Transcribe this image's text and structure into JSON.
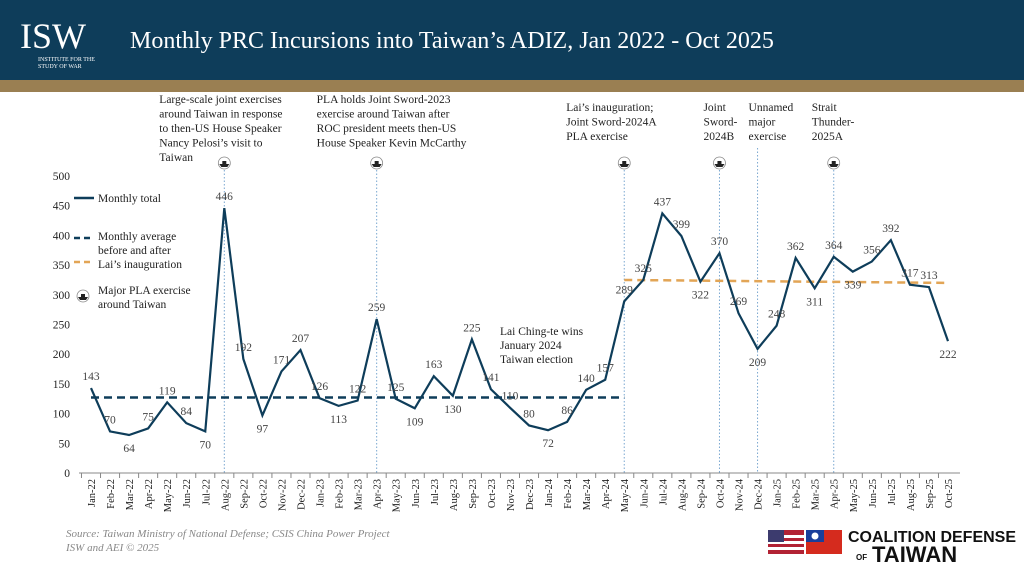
{
  "header": {
    "logo": "ISW",
    "logo_sub": [
      "INSTITUTE FOR THE",
      "STUDY OF WAR"
    ]
  },
  "chart_data": {
    "type": "line",
    "title": "Monthly PRC Incursions into Taiwan’s ADIZ, Jan 2022 - Oct 2025",
    "categories": [
      "Jan-22",
      "Feb-22",
      "Mar-22",
      "Apr-22",
      "May-22",
      "Jun-22",
      "Jul-22",
      "Aug-22",
      "Sep-22",
      "Oct-22",
      "Nov-22",
      "Dec-22",
      "Jan-23",
      "Feb-23",
      "Mar-23",
      "Apr-23",
      "May-23",
      "Jun-23",
      "Jul-23",
      "Aug-23",
      "Sep-23",
      "Oct-23",
      "Nov-23",
      "Dec-23",
      "Jan-24",
      "Feb-24",
      "Mar-24",
      "Apr-24",
      "May-24",
      "Jun-24",
      "Jul-24",
      "Aug-24",
      "Sep-24",
      "Oct-24",
      "Nov-24",
      "Dec-24",
      "Jan-25",
      "Feb-25",
      "Mar-25",
      "Apr-25",
      "May-25",
      "Jun-25",
      "Jul-25",
      "Aug-25",
      "Sep-25",
      "Oct-25"
    ],
    "series": [
      {
        "name": "Monthly total",
        "color": "#0e3d5a",
        "values": [
          143,
          70,
          64,
          75,
          119,
          84,
          70,
          446,
          192,
          97,
          171,
          207,
          126,
          113,
          122,
          259,
          125,
          109,
          163,
          130,
          225,
          141,
          110,
          80,
          72,
          86,
          140,
          157,
          289,
          325,
          437,
          399,
          322,
          370,
          269,
          209,
          248,
          362,
          311,
          364,
          339,
          356,
          392,
          317,
          313,
          222
        ]
      }
    ],
    "averages": {
      "name": [
        "Monthly average",
        "before and after",
        "Lai’s inauguration"
      ],
      "lines": [
        {
          "color": "#0e3d5a",
          "values": [
            127,
            127,
            127,
            127,
            127,
            127,
            127,
            127,
            127,
            127,
            127,
            127,
            127,
            127,
            127,
            127,
            127,
            127,
            127,
            127,
            127,
            127,
            127,
            127,
            127,
            127,
            127,
            127,
            127,
            null,
            null,
            null,
            null,
            null,
            null,
            null,
            null,
            null,
            null,
            null,
            null,
            null,
            null,
            null,
            null,
            null
          ]
        },
        {
          "color": "#e2a556",
          "values": [
            null,
            null,
            null,
            null,
            null,
            null,
            null,
            null,
            null,
            null,
            null,
            null,
            null,
            null,
            null,
            null,
            null,
            null,
            null,
            null,
            null,
            null,
            null,
            null,
            null,
            null,
            null,
            null,
            325,
            null,
            null,
            null,
            null,
            null,
            null,
            null,
            null,
            null,
            null,
            null,
            null,
            null,
            null,
            null,
            null,
            320
          ]
        }
      ]
    },
    "exercise_legend": [
      "Major PLA exercise",
      "around Taiwan"
    ],
    "annotations": [
      {
        "x": "Aug-22",
        "icon": true,
        "text": [
          "Large-scale joint exercises",
          "around Taiwan in response",
          "to then-US House Speaker",
          "Nancy Pelosi’s  visit to",
          "Taiwan"
        ]
      },
      {
        "x": "Apr-23",
        "icon": true,
        "text": [
          "PLA holds Joint Sword-2023",
          "exercise  around Taiwan after",
          "ROC president  meets then-US",
          "House Speaker  Kevin McCarthy"
        ]
      },
      {
        "x": "May-24",
        "icon": true,
        "text": [
          "Lai’s inauguration;",
          "Joint Sword-2024A",
          "PLA exercise"
        ]
      },
      {
        "x": "Oct-24",
        "icon": true,
        "text": [
          "Joint",
          "Sword-",
          "2024B"
        ]
      },
      {
        "x": "Dec-24",
        "icon": false,
        "text": [
          "Unnamed",
          "major",
          "exercise"
        ]
      },
      {
        "x": "Apr-25",
        "icon": true,
        "text": [
          "Strait",
          "Thunder-",
          "2025A"
        ]
      }
    ],
    "note": [
      "Lai Ching-te wins",
      "January 2024",
      "Taiwan election"
    ],
    "ylim": [
      0,
      500
    ],
    "yticks": [
      0,
      50,
      100,
      150,
      200,
      250,
      300,
      350,
      400,
      450,
      500
    ]
  },
  "footer": {
    "source": [
      "Source: Taiwan Ministry of National Defense; CSIS China Power Project",
      "ISW and AEI © 2025"
    ],
    "partner": [
      "COALITION DEFENSE",
      "OF",
      "TAIWAN"
    ]
  }
}
